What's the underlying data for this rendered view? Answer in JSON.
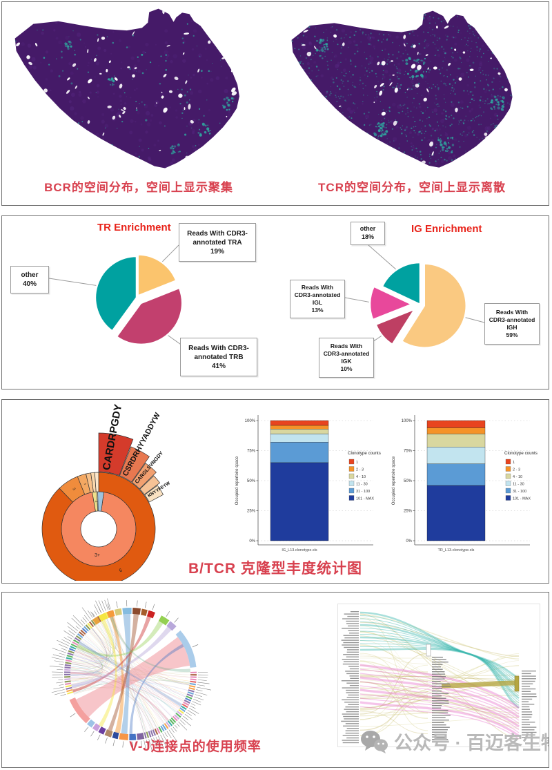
{
  "panel1": {
    "caption_left": "BCR的空间分布，空间上显示聚集",
    "caption_right": "TCR的空间分布，空间上显示离散",
    "tissue_color": "#451a68",
    "speckle_color": "#2fa8a0"
  },
  "panel2": {
    "tr_title": "TR Enrichment",
    "ig_title": "IG Enrichment",
    "tr_callout_tra": "Reads With CDR3-\nannotated TRA\n19%",
    "tr_callout_trb": "Reads With CDR3-\nannotated TRB\n41%",
    "tr_callout_other": "other\n40%",
    "ig_callout_other": "other\n18%",
    "ig_callout_igl": "Reads With\nCDR3-annotated\nIGL\n13%",
    "ig_callout_igk": "Reads With\nCDR3-annotated\nIGK\n10%",
    "ig_callout_igh": "Reads With\nCDR3-annotated\nIGH\n59%"
  },
  "panel3": {
    "caption": "B/TCR 克隆型丰度统计图"
  },
  "panel4": {
    "caption": "V-J连接点的使用频率",
    "watermark": "公众号 · 百迈客生物"
  },
  "chart_data": [
    {
      "type": "pie",
      "id": "pie-tr",
      "title": "TR Enrichment",
      "slices": [
        {
          "label": "Reads With CDR3-annotated TRA",
          "pct": 19,
          "color": "#FBC46D"
        },
        {
          "label": "Reads With CDR3-annotated TRB",
          "pct": 41,
          "color": "#C2406E"
        },
        {
          "label": "other",
          "pct": 40,
          "color": "#00A1A0"
        }
      ]
    },
    {
      "type": "pie",
      "id": "pie-ig",
      "title": "IG Enrichment",
      "slices": [
        {
          "label": "Reads With CDR3-annotated IGH",
          "pct": 59,
          "color": "#FAC981"
        },
        {
          "label": "Reads With CDR3-annotated IGK",
          "pct": 10,
          "color": "#BE3F63"
        },
        {
          "label": "Reads With CDR3-annotated IGL",
          "pct": 13,
          "color": "#E8489B"
        },
        {
          "label": "other",
          "pct": 18,
          "color": "#00A1A0"
        }
      ]
    },
    {
      "type": "sunburst",
      "id": "sunburst",
      "cdr3_labels": [
        "CARDRPGDY",
        "CSRDRHYYADDYW",
        "CARGLSVNGDY",
        "",
        "KNYYFEYW"
      ],
      "ring_labels": [
        "3+",
        "2",
        "3",
        "5",
        "6"
      ]
    },
    {
      "type": "stacked_bar",
      "id": "bar-ig",
      "xlabel": "IG_L13.clonotype.xls",
      "ylabel": "Occupied repertoire space",
      "legend_title": "Clonotype counts",
      "yticks": [
        "0%",
        "25%",
        "50%",
        "75%",
        "100%"
      ],
      "segments": [
        {
          "label": "101 - MAX",
          "value": 65,
          "color": "#1F3C9D"
        },
        {
          "label": "31 - 100",
          "value": 17,
          "color": "#5B9BD5"
        },
        {
          "label": "11 - 30",
          "value": 7,
          "color": "#C2E4EF"
        },
        {
          "label": "4 - 10",
          "value": 4,
          "color": "#D9D79F"
        },
        {
          "label": "2 - 3",
          "value": 3,
          "color": "#F59328"
        },
        {
          "label": "1",
          "value": 4,
          "color": "#E8441F"
        }
      ]
    },
    {
      "type": "stacked_bar",
      "id": "bar-tr",
      "xlabel": "TR_L13.clonotype.xls",
      "ylabel": "Occupied repertoire space",
      "legend_title": "Clonotype counts",
      "yticks": [
        "0%",
        "25%",
        "50%",
        "75%",
        "100%"
      ],
      "segments": [
        {
          "label": "101 - MAX",
          "value": 46,
          "color": "#1F3C9D"
        },
        {
          "label": "31 - 100",
          "value": 18,
          "color": "#5B9BD5"
        },
        {
          "label": "11 - 30",
          "value": 14,
          "color": "#C2E4EF"
        },
        {
          "label": "4 - 10",
          "value": 11,
          "color": "#D9D79F"
        },
        {
          "label": "2 - 3",
          "value": 5,
          "color": "#F59328"
        },
        {
          "label": "1",
          "value": 6,
          "color": "#E8441F"
        }
      ]
    },
    {
      "type": "chord",
      "id": "chord",
      "note": "V-J gene labels around rim are too small to be legible in source image",
      "rim": [
        [
          -35,
          -30,
          "#E8A33D"
        ],
        [
          -29,
          -22,
          "#F5E642"
        ],
        [
          -21,
          -15,
          "#F59B3C"
        ],
        [
          -14,
          -8,
          "#D8CC7A"
        ],
        [
          -7,
          1,
          "#85BCE0"
        ],
        [
          2,
          9,
          "#8C4A2D"
        ],
        [
          10,
          15,
          "#A65C2B"
        ],
        [
          16,
          22,
          "#CC2222"
        ],
        [
          28,
          36,
          "#94D052"
        ],
        [
          37,
          44,
          "#B8A8DA"
        ],
        [
          49,
          84,
          "#AACCEA"
        ],
        [
          168,
          174,
          "#8064A2"
        ],
        [
          175,
          181,
          "#4472C4"
        ],
        [
          182,
          190,
          "#F79646"
        ],
        [
          191,
          196,
          "#2E4B9E"
        ],
        [
          197,
          203,
          "#B08968"
        ],
        [
          204,
          209,
          "#6B3FA0"
        ],
        [
          210,
          215,
          "#C9A0DC"
        ],
        [
          216,
          221,
          "#9DC3E6"
        ],
        [
          222,
          247,
          "#F4A09E"
        ]
      ],
      "ribbons": [
        [
          52,
          82,
          224,
          245,
          "#F2A2A8",
          0.62
        ],
        [
          -7,
          0,
          183,
          189,
          "#74A9D8",
          0.55
        ],
        [
          -20,
          -16,
          190,
          195,
          "#F59B3C",
          0.5
        ],
        [
          3,
          8,
          198,
          202,
          "#A0522D",
          0.45
        ],
        [
          16,
          20,
          252,
          255,
          "#CC3333",
          0.45
        ],
        [
          28,
          33,
          296,
          300,
          "#94D052",
          0.4
        ],
        [
          38,
          43,
          256,
          260,
          "#B8A8DA",
          0.45
        ],
        [
          60,
          63,
          178,
          181,
          "#4472C4",
          0.4
        ],
        [
          -29,
          -25,
          208,
          212,
          "#F5E642",
          0.45
        ],
        [
          85,
          88,
          340,
          343,
          "#66AA88",
          0.3
        ],
        [
          120,
          123,
          300,
          303,
          "#5588CC",
          0.3
        ],
        [
          140,
          142,
          270,
          272,
          "#CC6688",
          0.3
        ]
      ]
    },
    {
      "type": "sankey",
      "id": "sankey",
      "note": "V/J gene labels in the three columns are too small to be legible in source image",
      "flow_colors": [
        "#3FB8AF",
        "#E87DD0",
        "#B5A642"
      ]
    }
  ]
}
